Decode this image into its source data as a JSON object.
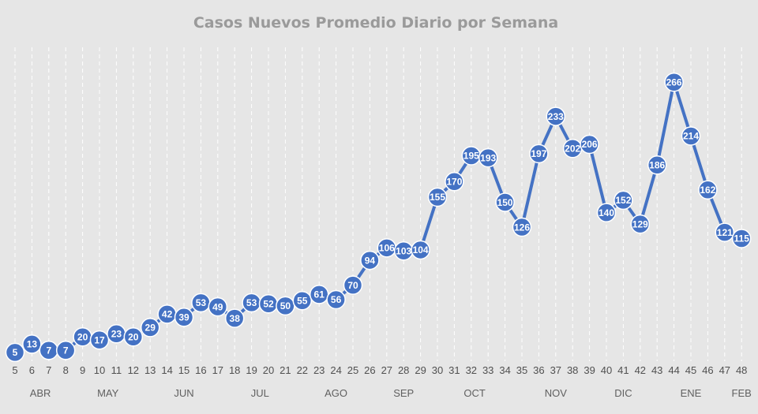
{
  "chart_data": {
    "type": "line",
    "title": "Casos Nuevos  Promedio Diario por Semana",
    "xlabel": "",
    "ylabel": "",
    "x": [
      5,
      6,
      7,
      8,
      9,
      10,
      11,
      12,
      13,
      14,
      15,
      16,
      17,
      18,
      19,
      20,
      21,
      22,
      23,
      24,
      25,
      26,
      27,
      28,
      29,
      30,
      31,
      32,
      33,
      34,
      35,
      36,
      37,
      38,
      39,
      40,
      41,
      42,
      43,
      44,
      45,
      46,
      47,
      48
    ],
    "series": [
      {
        "values": [
          5,
          13,
          7,
          7,
          20,
          17,
          23,
          20,
          29,
          42,
          39,
          53,
          49,
          38,
          53,
          52,
          50,
          55,
          61,
          56,
          70,
          94,
          106,
          103,
          104,
          155,
          170,
          195,
          193,
          150,
          126,
          197,
          233,
          202,
          206,
          140,
          152,
          129,
          186,
          266,
          214,
          162,
          121,
          115
        ]
      }
    ],
    "month_labels": [
      {
        "label": "ABR",
        "at": 6.5
      },
      {
        "label": "MAY",
        "at": 10.5
      },
      {
        "label": "JUN",
        "at": 15
      },
      {
        "label": "JUL",
        "at": 19.5
      },
      {
        "label": "AGO",
        "at": 24
      },
      {
        "label": "SEP",
        "at": 28
      },
      {
        "label": "OCT",
        "at": 32.2
      },
      {
        "label": "NOV",
        "at": 37
      },
      {
        "label": "DIC",
        "at": 41
      },
      {
        "label": "ENE",
        "at": 45
      },
      {
        "label": "FEB",
        "at": 48
      }
    ],
    "ylim": [
      0,
      300
    ],
    "grid": true,
    "legend": "none",
    "colors": {
      "series": "#4472c4",
      "background": "#e6e6e6",
      "grid": "#ffffff"
    }
  }
}
